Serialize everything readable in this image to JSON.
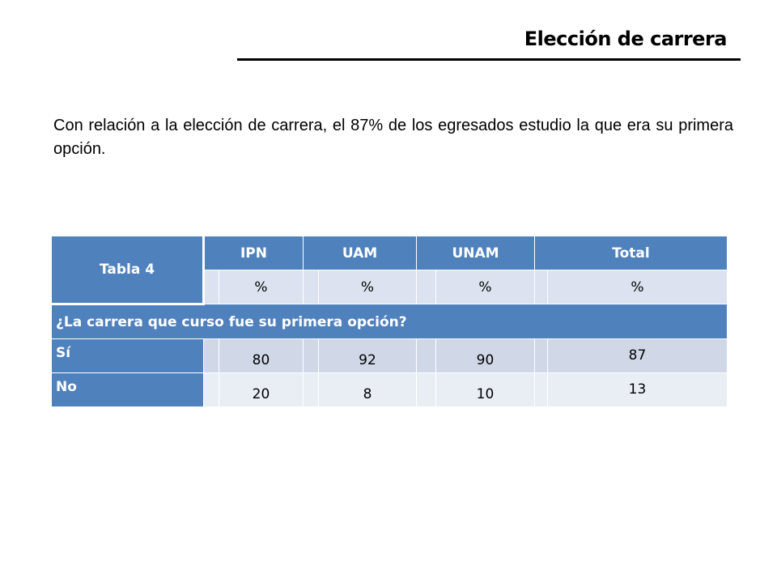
{
  "slide": {
    "title": "Elección de carrera",
    "intro": "Con relación a la elección de carrera, el 87% de los egresados estudio la que era su primera opción."
  },
  "table": {
    "corner_label": "Tabla 4",
    "columns": [
      "IPN",
      "UAM",
      "UNAM",
      "Total"
    ],
    "unit_row": [
      "%",
      "%",
      "%",
      "%"
    ],
    "question": "¿La carrera que curso fue su primera opción?",
    "rows": [
      {
        "label": "Sí",
        "values": [
          "80",
          "92",
          "90",
          "87"
        ]
      },
      {
        "label": "No",
        "values": [
          "20",
          "8",
          "10",
          "13"
        ]
      }
    ]
  },
  "colors": {
    "header_blue": "#4f81bd",
    "row_light": "#d0d8e8",
    "row_lighter": "#e9edf4"
  }
}
